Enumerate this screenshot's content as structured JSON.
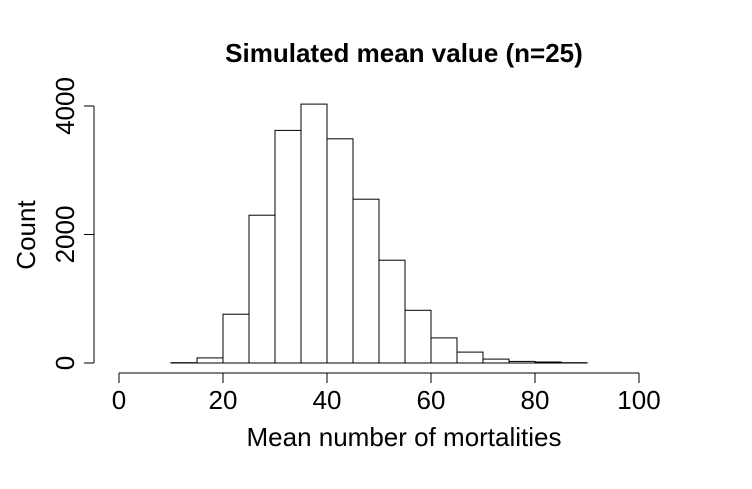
{
  "chart_data": {
    "type": "bar",
    "title": "Simulated mean value (n=25)",
    "xlabel": "Mean number of mortalities",
    "ylabel": "Count",
    "xlim": [
      0,
      100
    ],
    "ylim": [
      0,
      4000
    ],
    "x_ticks": [
      0,
      20,
      40,
      60,
      80,
      100
    ],
    "y_ticks": [
      0,
      2000,
      4000
    ],
    "bin_width": 5,
    "bins": [
      {
        "x0": 10,
        "x1": 15,
        "count": 5
      },
      {
        "x0": 15,
        "x1": 20,
        "count": 80
      },
      {
        "x0": 20,
        "x1": 25,
        "count": 760
      },
      {
        "x0": 25,
        "x1": 30,
        "count": 2300
      },
      {
        "x0": 30,
        "x1": 35,
        "count": 3620
      },
      {
        "x0": 35,
        "x1": 40,
        "count": 4030
      },
      {
        "x0": 40,
        "x1": 45,
        "count": 3490
      },
      {
        "x0": 45,
        "x1": 50,
        "count": 2550
      },
      {
        "x0": 50,
        "x1": 55,
        "count": 1600
      },
      {
        "x0": 55,
        "x1": 60,
        "count": 820
      },
      {
        "x0": 60,
        "x1": 65,
        "count": 390
      },
      {
        "x0": 65,
        "x1": 70,
        "count": 170
      },
      {
        "x0": 70,
        "x1": 75,
        "count": 60
      },
      {
        "x0": 75,
        "x1": 80,
        "count": 25
      },
      {
        "x0": 80,
        "x1": 85,
        "count": 15
      },
      {
        "x0": 85,
        "x1": 90,
        "count": 5
      }
    ],
    "grid": false,
    "legend": "none"
  }
}
